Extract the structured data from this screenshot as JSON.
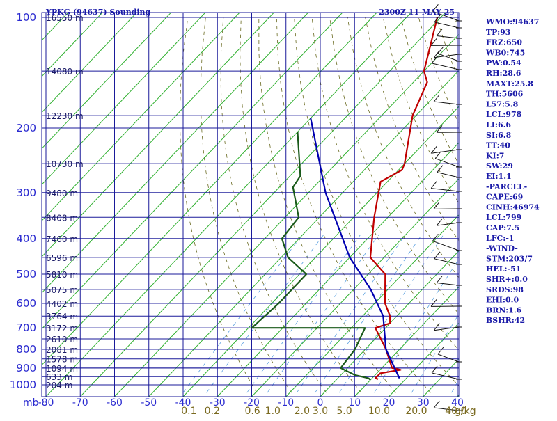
{
  "chart_data": {
    "type": "line",
    "title_left": "YPKG (94637) Sounding",
    "title_right": "2300Z 11 MAY 25",
    "x_axis_unit": "mb",
    "mixing_axis_unit": "g/kg",
    "pressure_ticks": [
      100,
      200,
      300,
      400,
      500,
      600,
      700,
      800,
      900,
      1000
    ],
    "height_labels": [
      {
        "p": 100,
        "label": "16550 m"
      },
      {
        "p": 140,
        "label": "14080 m"
      },
      {
        "p": 185,
        "label": "12230 m"
      },
      {
        "p": 250,
        "label": "10730 m"
      },
      {
        "p": 300,
        "label": "9480 m"
      },
      {
        "p": 350,
        "label": "8408 m"
      },
      {
        "p": 400,
        "label": "7460 m"
      },
      {
        "p": 450,
        "label": "6596 m"
      },
      {
        "p": 500,
        "label": "5810 m"
      },
      {
        "p": 550,
        "label": "5075 m"
      },
      {
        "p": 600,
        "label": "4402 m"
      },
      {
        "p": 650,
        "label": "3764 m"
      },
      {
        "p": 700,
        "label": "3172 m"
      },
      {
        "p": 750,
        "label": "2610 m"
      },
      {
        "p": 800,
        "label": "2081 m"
      },
      {
        "p": 850,
        "label": "1578 m"
      },
      {
        "p": 900,
        "label": "1094 m"
      },
      {
        "p": 950,
        "label": "633 m"
      },
      {
        "p": 1000,
        "label": "204 m"
      }
    ],
    "temp_ticks": [
      -80,
      -70,
      -60,
      -50,
      -40,
      -30,
      -20,
      -10,
      0,
      10,
      20,
      30,
      40
    ],
    "mixing_ticks": [
      "0.1",
      "0.2",
      "0.6",
      "1.0",
      "2.0",
      "3.0",
      "5.0",
      "10.0",
      "20.0",
      "40.0"
    ],
    "series": [
      {
        "role": "temperature",
        "color": "#c00000",
        "points": [
          [
            -71,
            100
          ],
          [
            -60,
            140
          ],
          [
            -56,
            150
          ],
          [
            -51,
            185
          ],
          [
            -40,
            250
          ],
          [
            -39,
            260
          ],
          [
            -42,
            280
          ],
          [
            -34,
            350
          ],
          [
            -24,
            450
          ],
          [
            -15,
            500
          ],
          [
            -7,
            600
          ],
          [
            -2,
            650
          ],
          [
            0,
            680
          ],
          [
            -3,
            700
          ],
          [
            6,
            800
          ],
          [
            13,
            900
          ],
          [
            16,
            910
          ],
          [
            11,
            930
          ],
          [
            11,
            960
          ],
          [
            12,
            965
          ]
        ]
      },
      {
        "role": "dewpoint",
        "color": "#1a5a1a",
        "points": [
          [
            -80,
            205
          ],
          [
            -67,
            270
          ],
          [
            -66,
            290
          ],
          [
            -56,
            350
          ],
          [
            -55,
            400
          ],
          [
            -48,
            450
          ],
          [
            -38,
            500
          ],
          [
            -38,
            600
          ],
          [
            -39,
            700
          ],
          [
            -6,
            700
          ],
          [
            -3,
            800
          ],
          [
            -2,
            900
          ],
          [
            4,
            940
          ],
          [
            9,
            960
          ],
          [
            10,
            970
          ]
        ]
      },
      {
        "role": "parcel",
        "color": "#0000b0",
        "points": [
          [
            -80,
            188
          ],
          [
            -55,
            300
          ],
          [
            -30,
            450
          ],
          [
            -15,
            550
          ],
          [
            -4,
            650
          ],
          [
            6,
            800
          ],
          [
            18,
            960
          ]
        ]
      }
    ],
    "stats": [
      "WMO:94637",
      "TP:93",
      "FRZ:650",
      "WB0:745",
      "PW:0.54",
      "RH:28.6",
      "MAXT:25.8",
      "TH:5606",
      "L57:5.8",
      "LCL:978",
      "LI:6.6",
      "SI:6.8",
      "TT:40",
      "KI:7",
      "SW:29",
      "EI:1.1",
      "-PARCEL-",
      "CAPE:69",
      "CINH:46974",
      "LCL:799",
      "CAP:7.5",
      "LFC:-1",
      "-WIND-",
      "STM:203/7",
      "HEL:-51",
      "SHR+:0.0",
      "SRDS:98",
      "EHI:0.0",
      "BRN:1.6",
      "BSHR:42"
    ]
  },
  "colors": {
    "grid": "#1a1a9a",
    "isotherm": "#30b030",
    "dry_adiabat": "#6a6a20",
    "mixing_line": "#5aa0e0",
    "text": "#1a1aa8"
  }
}
